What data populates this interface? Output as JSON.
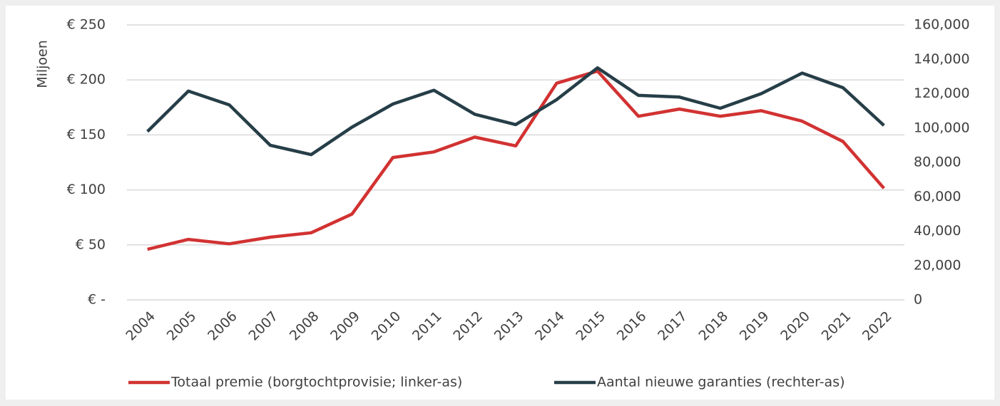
{
  "chart_data": {
    "type": "line",
    "categories": [
      "2004",
      "2005",
      "2006",
      "2007",
      "2008",
      "2009",
      "2010",
      "2011",
      "2012",
      "2013",
      "2014",
      "2015",
      "2016",
      "2017",
      "2018",
      "2019",
      "2020",
      "2021",
      "2022"
    ],
    "ylabel": "Miljoen",
    "series": [
      {
        "name": "Totaal premie (borgtochtprovisie; linker-as)",
        "color": "#d23232",
        "axis": "y",
        "values": [
          46,
          55,
          51,
          57,
          61,
          78,
          129.5,
          134.5,
          148,
          140,
          197,
          208,
          167,
          173.5,
          167,
          172,
          162.5,
          144,
          101.5
        ]
      },
      {
        "name": "Aantal nieuwe garanties (rechter-as)",
        "color": "#263e48",
        "axis": "y2",
        "values": [
          98000,
          121500,
          113500,
          90000,
          84500,
          100500,
          114000,
          122000,
          108000,
          102000,
          116500,
          135000,
          119000,
          118000,
          111500,
          120000,
          132000,
          123500,
          101500
        ]
      }
    ],
    "ylim": [
      0,
      250
    ],
    "yticks": [
      {
        "value": 0,
        "label": "€ -"
      },
      {
        "value": 50,
        "label": "€ 50"
      },
      {
        "value": 100,
        "label": "€ 100"
      },
      {
        "value": 150,
        "label": "€ 150"
      },
      {
        "value": 200,
        "label": "€ 200"
      },
      {
        "value": 250,
        "label": "€ 250"
      }
    ],
    "y2lim": [
      0,
      160000
    ],
    "y2ticks": [
      0,
      {
        "value": 20000,
        "label": "20,000"
      },
      {
        "value": 40000,
        "label": "40,000"
      },
      {
        "value": 60000,
        "label": "60,000"
      },
      {
        "value": 80000,
        "label": "80,000"
      },
      {
        "value": 100000,
        "label": "100,000"
      },
      {
        "value": 120000,
        "label": "120,000"
      },
      {
        "value": 140000,
        "label": "140,000"
      },
      {
        "value": 160000,
        "label": "160,000"
      }
    ],
    "grid": true,
    "legend": "bottom"
  }
}
